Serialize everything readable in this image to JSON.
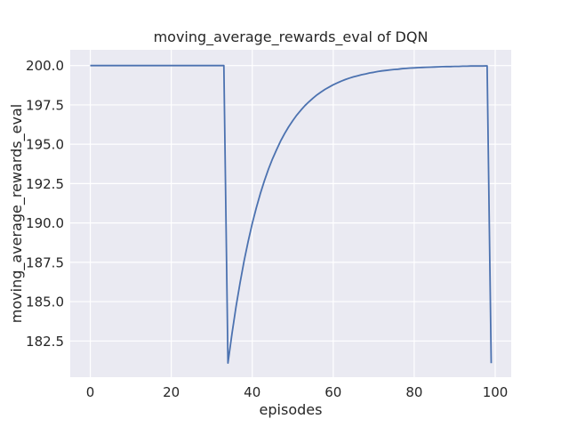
{
  "chart_data": {
    "type": "line",
    "title": "moving_average_rewards_eval of DQN",
    "xlabel": "episodes",
    "ylabel": "moving_average_rewards_eval",
    "grid": true,
    "legend_position": "none",
    "x_range": [
      -4.95,
      103.95
    ],
    "y_range": [
      180.2,
      201.0
    ],
    "x_ticks": [
      0,
      20,
      40,
      60,
      80,
      100
    ],
    "x_tick_labels": [
      "0",
      "20",
      "40",
      "60",
      "80",
      "100"
    ],
    "y_ticks": [
      182.5,
      185.0,
      187.5,
      190.0,
      192.5,
      195.0,
      197.5,
      200.0
    ],
    "y_tick_labels": [
      "182.5",
      "185.0",
      "187.5",
      "190.0",
      "192.5",
      "195.0",
      "197.5",
      "200.0"
    ],
    "colors": {
      "figure_background": "#FFFFFF",
      "axes_background": "#EAEAF2",
      "grid": "#FFFFFF",
      "line": "#4C72B0",
      "text": "#262626"
    },
    "series": [
      {
        "name": "DQN",
        "color": "#4C72B0",
        "x": [
          0,
          1,
          2,
          3,
          4,
          5,
          6,
          7,
          8,
          9,
          10,
          11,
          12,
          13,
          14,
          15,
          16,
          17,
          18,
          19,
          20,
          21,
          22,
          23,
          24,
          25,
          26,
          27,
          28,
          29,
          30,
          31,
          32,
          33,
          34,
          35,
          36,
          37,
          38,
          39,
          40,
          41,
          42,
          43,
          44,
          45,
          46,
          47,
          48,
          49,
          50,
          51,
          52,
          53,
          54,
          55,
          56,
          57,
          58,
          59,
          60,
          61,
          62,
          63,
          64,
          65,
          66,
          67,
          68,
          69,
          70,
          71,
          72,
          73,
          74,
          75,
          76,
          77,
          78,
          79,
          80,
          81,
          82,
          83,
          84,
          85,
          86,
          87,
          88,
          89,
          90,
          91,
          92,
          93,
          94,
          95,
          96,
          97,
          98,
          99
        ],
        "y": [
          200.0,
          200.0,
          200.0,
          200.0,
          200.0,
          200.0,
          200.0,
          200.0,
          200.0,
          200.0,
          200.0,
          200.0,
          200.0,
          200.0,
          200.0,
          200.0,
          200.0,
          200.0,
          200.0,
          200.0,
          200.0,
          200.0,
          200.0,
          200.0,
          200.0,
          200.0,
          200.0,
          200.0,
          200.0,
          200.0,
          200.0,
          200.0,
          200.0,
          200.0,
          181.1,
          182.99,
          184.69,
          186.22,
          187.6,
          188.84,
          189.96,
          190.96,
          191.86,
          192.68,
          193.41,
          194.07,
          194.66,
          195.2,
          195.68,
          196.11,
          196.5,
          196.85,
          197.16,
          197.45,
          197.7,
          197.93,
          198.14,
          198.32,
          198.49,
          198.64,
          198.78,
          198.9,
          199.01,
          199.11,
          199.2,
          199.28,
          199.35,
          199.42,
          199.47,
          199.53,
          199.57,
          199.62,
          199.66,
          199.69,
          199.72,
          199.75,
          199.77,
          199.8,
          199.82,
          199.84,
          199.85,
          199.87,
          199.88,
          199.89,
          199.9,
          199.91,
          199.92,
          199.93,
          199.94,
          199.94,
          199.95,
          199.95,
          199.96,
          199.96,
          199.97,
          199.97,
          199.97,
          199.97,
          199.98,
          181.09
        ]
      }
    ]
  }
}
